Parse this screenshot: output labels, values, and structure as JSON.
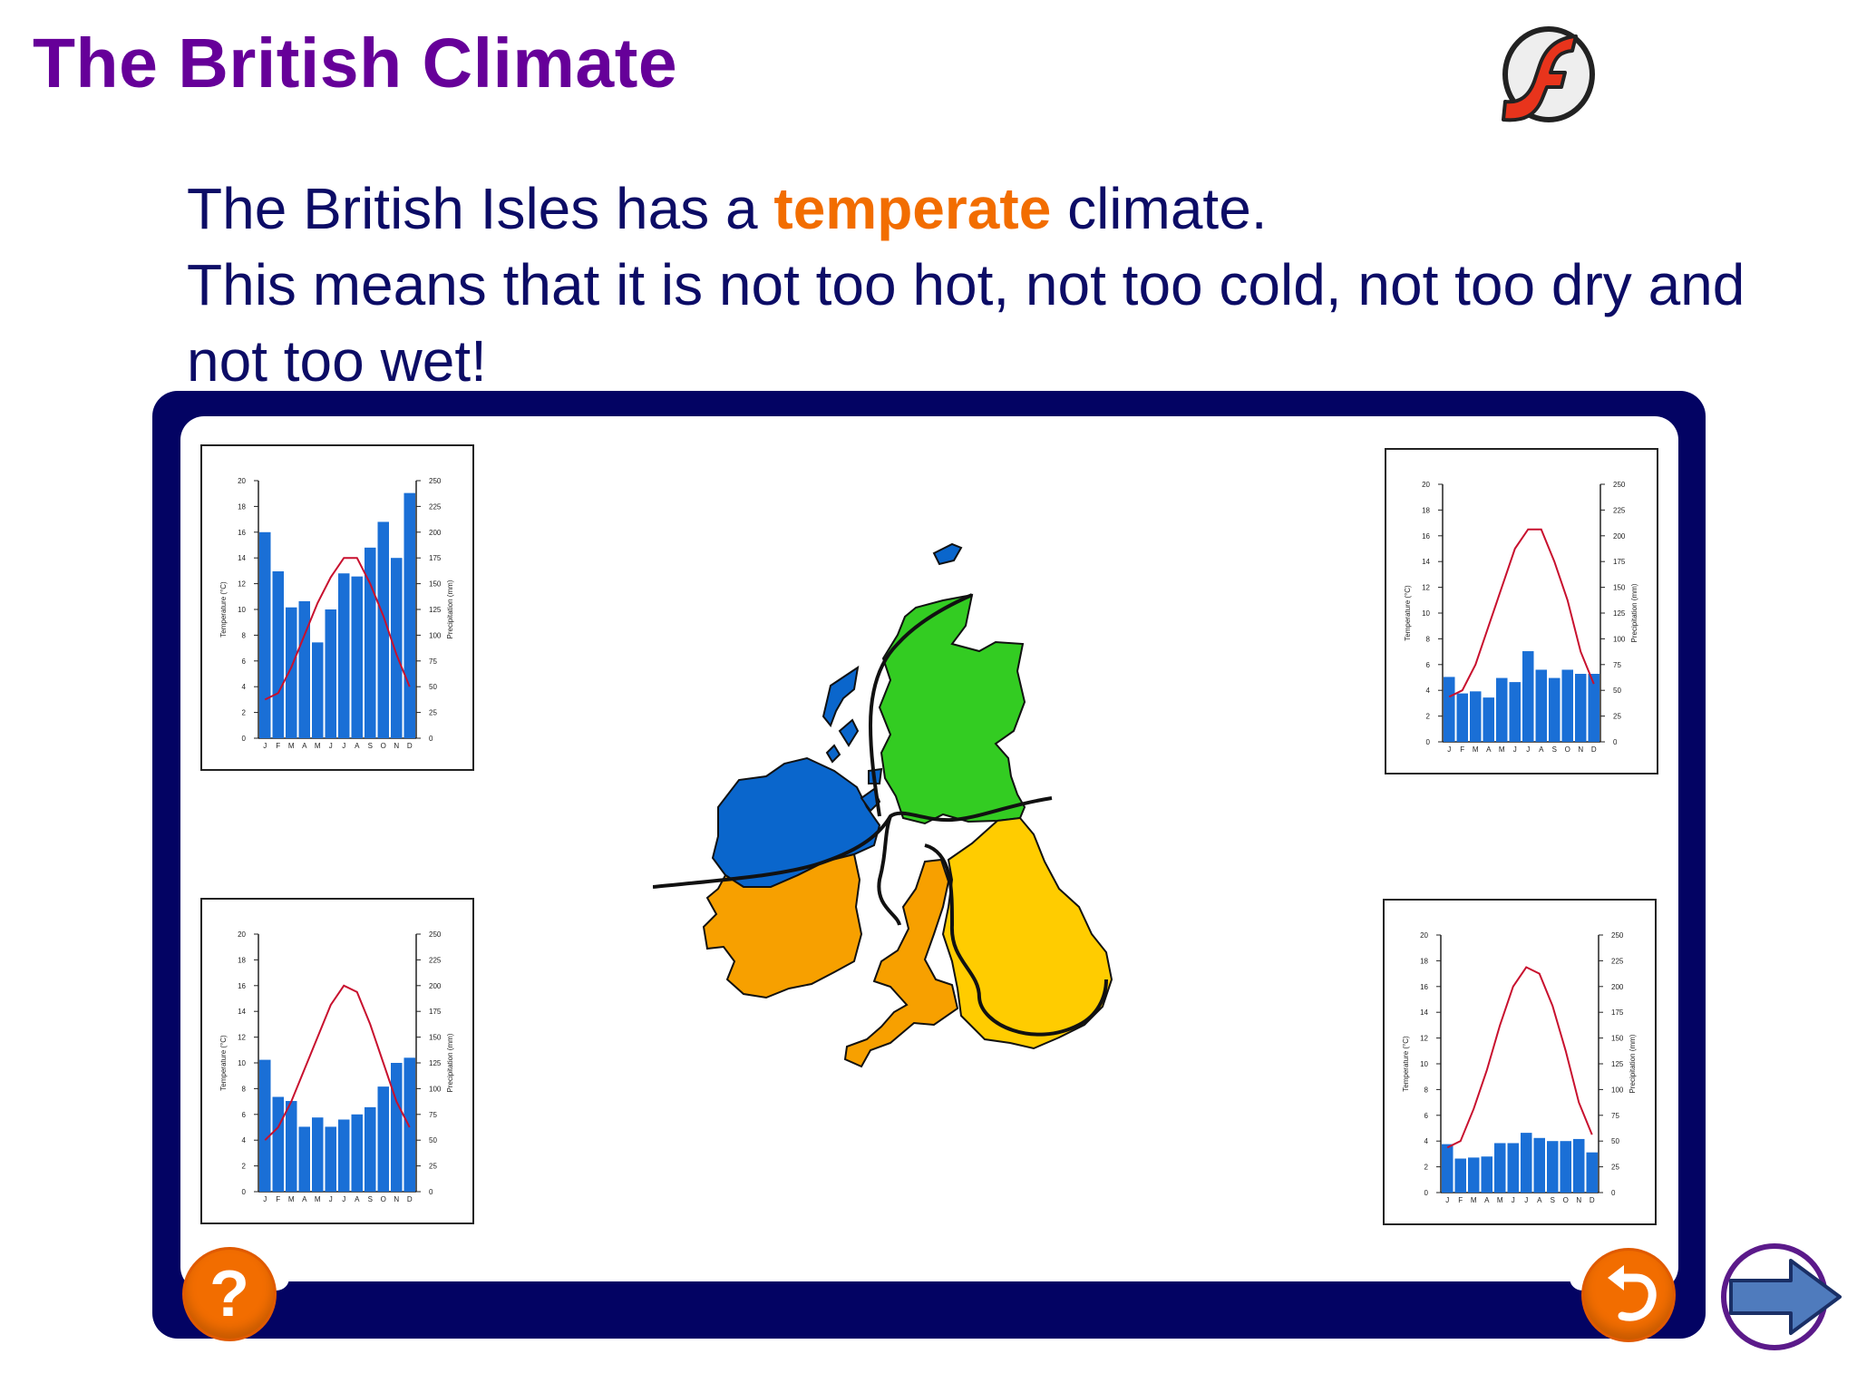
{
  "header": {
    "title": "The British Climate"
  },
  "logo": {
    "icon": "flash-logo-icon",
    "letter": "f"
  },
  "intro": {
    "before": "The British Isles has a ",
    "highlight": "temperate",
    "after": " climate.",
    "line2": "This means that it is not too hot, not too cold, not too dry and not too wet!"
  },
  "colors": {
    "title": "#660099",
    "text": "#0c0c66",
    "highlight": "#f26d00",
    "frame": "#030363",
    "button": "#f26d00",
    "bar": "#1a6fd6",
    "temp_line": "#c8102e",
    "region_scotland": "#33cc22",
    "region_northern_ireland": "#0a66cc",
    "region_west": "#f7a000",
    "region_east": "#ffcc00"
  },
  "controls": {
    "help_label": "?",
    "help_icon": "question-icon",
    "back_icon": "undo-arrow-icon",
    "next_icon": "next-arrow-icon"
  },
  "chart_data": [
    {
      "type": "bar",
      "months": [
        "J",
        "F",
        "M",
        "A",
        "M",
        "J",
        "J",
        "A",
        "S",
        "O",
        "N",
        "D"
      ],
      "ylabel_left": "Temperature (°C)",
      "ylabel_right": "Precipitation (mm)",
      "temp_ticks": [
        "20",
        "18",
        "16",
        "14",
        "12",
        "10",
        "8",
        "6",
        "4",
        "2",
        "0"
      ],
      "precip_ticks": [
        "250",
        "225",
        "200",
        "175",
        "150",
        "125",
        "100",
        "75",
        "50",
        "25",
        "0"
      ],
      "temp_ylim": [
        0,
        20
      ],
      "precip_ylim": [
        0,
        250
      ],
      "precipitation": [
        200,
        162,
        127,
        133,
        93,
        125,
        160,
        157,
        185,
        210,
        175,
        238
      ],
      "temperature": [
        3,
        3.5,
        5.5,
        8,
        10.5,
        12.5,
        14,
        14,
        12,
        9.5,
        6.5,
        4
      ]
    },
    {
      "type": "bar",
      "months": [
        "J",
        "F",
        "M",
        "A",
        "M",
        "J",
        "J",
        "A",
        "S",
        "O",
        "N",
        "D"
      ],
      "ylabel_left": "Temperature (°C)",
      "ylabel_right": "Precipitation (mm)",
      "temp_ticks": [
        "20",
        "18",
        "16",
        "14",
        "12",
        "10",
        "8",
        "6",
        "4",
        "2",
        "0"
      ],
      "precip_ticks": [
        "250",
        "225",
        "200",
        "175",
        "150",
        "125",
        "100",
        "75",
        "50",
        "25",
        "0"
      ],
      "temp_ylim": [
        0,
        20
      ],
      "precip_ylim": [
        0,
        250
      ],
      "precipitation": [
        63,
        47,
        49,
        43,
        62,
        58,
        88,
        70,
        62,
        70,
        66,
        66
      ],
      "temperature": [
        3.5,
        4,
        6,
        9,
        12,
        15,
        16.5,
        16.5,
        14,
        11,
        7,
        4.5
      ]
    },
    {
      "type": "bar",
      "months": [
        "J",
        "F",
        "M",
        "A",
        "M",
        "J",
        "J",
        "A",
        "S",
        "O",
        "N",
        "D"
      ],
      "ylabel_left": "Temperature (°C)",
      "ylabel_right": "Precipitation (mm)",
      "temp_ticks": [
        "20",
        "18",
        "16",
        "14",
        "12",
        "10",
        "8",
        "6",
        "4",
        "2",
        "0"
      ],
      "precip_ticks": [
        "250",
        "225",
        "200",
        "175",
        "150",
        "125",
        "100",
        "75",
        "50",
        "25",
        "0"
      ],
      "temp_ylim": [
        0,
        20
      ],
      "precip_ylim": [
        0,
        250
      ],
      "precipitation": [
        128,
        92,
        88,
        63,
        72,
        63,
        70,
        75,
        82,
        102,
        125,
        130
      ],
      "temperature": [
        4,
        5,
        7,
        9.5,
        12,
        14.5,
        16,
        15.5,
        13,
        10,
        7,
        5
      ]
    },
    {
      "type": "bar",
      "months": [
        "J",
        "F",
        "M",
        "A",
        "M",
        "J",
        "J",
        "A",
        "S",
        "O",
        "N",
        "D"
      ],
      "ylabel_left": "Temperature (°C)",
      "ylabel_right": "Precipitation (mm)",
      "temp_ticks": [
        "20",
        "18",
        "16",
        "14",
        "12",
        "10",
        "8",
        "6",
        "4",
        "2",
        "0"
      ],
      "precip_ticks": [
        "250",
        "225",
        "200",
        "175",
        "150",
        "125",
        "100",
        "75",
        "50",
        "25",
        "0"
      ],
      "temp_ylim": [
        0,
        20
      ],
      "precip_ylim": [
        0,
        250
      ],
      "precipitation": [
        47,
        33,
        34,
        35,
        48,
        48,
        58,
        53,
        50,
        50,
        52,
        39
      ],
      "temperature": [
        3.5,
        4,
        6.5,
        9.5,
        13,
        16,
        17.5,
        17,
        14.5,
        11,
        7,
        4.5
      ]
    }
  ]
}
